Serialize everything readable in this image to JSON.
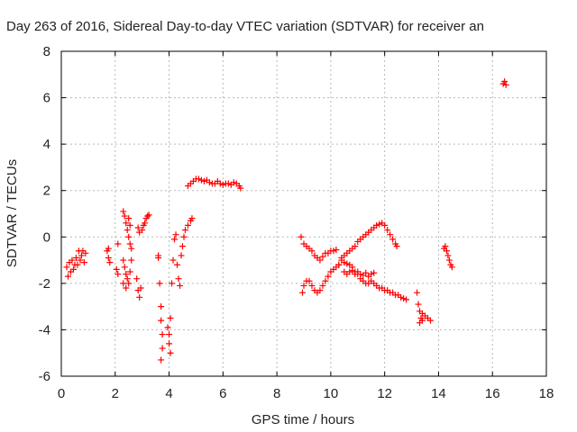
{
  "chart_data": {
    "type": "scatter",
    "title": "Day 263 of 2016, Sidereal Day-to-day VTEC variation (SDTVAR) for receiver an",
    "xlabel": "GPS time / hours",
    "ylabel": "SDTVAR / TECUs",
    "xlim": [
      0,
      18
    ],
    "ylim": [
      -6,
      8
    ],
    "xticks": [
      0,
      2,
      4,
      6,
      8,
      10,
      12,
      14,
      16,
      18
    ],
    "yticks": [
      -6,
      -4,
      -2,
      0,
      2,
      4,
      6,
      8
    ],
    "grid": true,
    "marker": "plus",
    "color": "#ff0000",
    "segments": [
      [
        [
          0.2,
          -1.3
        ],
        [
          0.25,
          -1.7
        ],
        [
          0.3,
          -1.1
        ],
        [
          0.35,
          -1.5
        ],
        [
          0.4,
          -1.0
        ],
        [
          0.45,
          -1.4
        ],
        [
          0.5,
          -1.2
        ],
        [
          0.55,
          -0.9
        ],
        [
          0.6,
          -1.2
        ],
        [
          0.65,
          -0.6
        ],
        [
          0.7,
          -1.0
        ],
        [
          0.75,
          -0.8
        ],
        [
          0.8,
          -0.6
        ],
        [
          0.85,
          -1.1
        ],
        [
          0.9,
          -0.7
        ]
      ],
      [
        [
          1.7,
          -0.6
        ],
        [
          1.75,
          -0.9
        ],
        [
          1.8,
          -1.1
        ],
        [
          1.75,
          -0.5
        ]
      ],
      [
        [
          2.05,
          -1.4
        ],
        [
          2.1,
          -1.6
        ],
        [
          2.1,
          -0.3
        ]
      ],
      [
        [
          2.3,
          1.1
        ],
        [
          2.35,
          0.9
        ],
        [
          2.4,
          0.6
        ],
        [
          2.45,
          0.3
        ],
        [
          2.5,
          0.0
        ],
        [
          2.55,
          -0.3
        ],
        [
          2.5,
          0.8
        ],
        [
          2.55,
          0.5
        ]
      ],
      [
        [
          2.3,
          -1.0
        ],
        [
          2.35,
          -1.3
        ],
        [
          2.4,
          -1.6
        ],
        [
          2.45,
          -1.8
        ],
        [
          2.5,
          -2.0
        ],
        [
          2.55,
          -1.5
        ],
        [
          2.6,
          -1.0
        ],
        [
          2.6,
          -0.5
        ],
        [
          2.4,
          -2.2
        ],
        [
          2.3,
          -2.0
        ]
      ],
      [
        [
          2.8,
          -1.8
        ],
        [
          2.85,
          -2.3
        ],
        [
          2.9,
          -2.6
        ],
        [
          2.95,
          -2.2
        ]
      ],
      [
        [
          2.85,
          0.4
        ],
        [
          2.9,
          0.2
        ],
        [
          3.0,
          0.3
        ],
        [
          3.05,
          0.5
        ],
        [
          3.1,
          0.6
        ],
        [
          3.15,
          0.8
        ],
        [
          3.2,
          0.9
        ],
        [
          3.25,
          0.95
        ]
      ],
      [
        [
          3.6,
          -0.8
        ],
        [
          3.65,
          -2.0
        ],
        [
          3.7,
          -3.0
        ],
        [
          3.7,
          -3.6
        ],
        [
          3.75,
          -4.2
        ],
        [
          3.75,
          -4.8
        ],
        [
          3.7,
          -5.3
        ],
        [
          3.6,
          -0.9
        ]
      ],
      [
        [
          3.95,
          -3.9
        ],
        [
          4.0,
          -4.2
        ],
        [
          4.0,
          -4.6
        ],
        [
          4.05,
          -5.0
        ],
        [
          4.05,
          -3.5
        ],
        [
          4.1,
          -2.0
        ],
        [
          4.15,
          -1.0
        ],
        [
          4.2,
          -0.1
        ],
        [
          4.25,
          0.1
        ]
      ],
      [
        [
          4.3,
          -1.2
        ],
        [
          4.35,
          -1.8
        ],
        [
          4.4,
          -2.1
        ],
        [
          4.45,
          -0.8
        ],
        [
          4.5,
          -0.4
        ],
        [
          4.55,
          0.0
        ],
        [
          4.6,
          0.3
        ],
        [
          4.7,
          0.5
        ],
        [
          4.8,
          0.7
        ],
        [
          4.85,
          0.8
        ]
      ],
      [
        [
          4.7,
          2.2
        ],
        [
          4.8,
          2.3
        ],
        [
          4.9,
          2.4
        ],
        [
          5.0,
          2.5
        ],
        [
          5.1,
          2.5
        ],
        [
          5.2,
          2.45
        ],
        [
          5.3,
          2.4
        ],
        [
          5.4,
          2.45
        ],
        [
          5.5,
          2.35
        ],
        [
          5.6,
          2.3
        ],
        [
          5.7,
          2.3
        ],
        [
          5.8,
          2.4
        ],
        [
          5.9,
          2.3
        ],
        [
          6.0,
          2.25
        ],
        [
          6.1,
          2.3
        ],
        [
          6.2,
          2.3
        ],
        [
          6.3,
          2.25
        ],
        [
          6.4,
          2.35
        ],
        [
          6.5,
          2.3
        ],
        [
          6.6,
          2.2
        ],
        [
          6.65,
          2.1
        ]
      ],
      [
        [
          8.9,
          0.0
        ],
        [
          9.0,
          -0.3
        ],
        [
          9.1,
          -0.4
        ],
        [
          9.2,
          -0.5
        ],
        [
          9.3,
          -0.6
        ],
        [
          9.4,
          -0.8
        ],
        [
          9.5,
          -0.9
        ],
        [
          9.6,
          -1.0
        ],
        [
          9.7,
          -0.85
        ],
        [
          9.8,
          -0.7
        ],
        [
          9.9,
          -0.7
        ],
        [
          10.0,
          -0.6
        ],
        [
          10.1,
          -0.6
        ],
        [
          10.2,
          -0.55
        ]
      ],
      [
        [
          8.95,
          -2.4
        ],
        [
          9.0,
          -2.1
        ],
        [
          9.1,
          -1.9
        ],
        [
          9.2,
          -1.9
        ],
        [
          9.3,
          -2.1
        ],
        [
          9.4,
          -2.3
        ],
        [
          9.5,
          -2.4
        ],
        [
          9.6,
          -2.3
        ],
        [
          9.7,
          -2.1
        ],
        [
          9.8,
          -1.9
        ],
        [
          9.9,
          -1.7
        ],
        [
          10.0,
          -1.5
        ],
        [
          10.1,
          -1.4
        ],
        [
          10.2,
          -1.3
        ],
        [
          10.3,
          -1.2
        ]
      ],
      [
        [
          10.3,
          -1.2
        ],
        [
          10.4,
          -1.0
        ],
        [
          10.5,
          -1.1
        ],
        [
          10.6,
          -1.15
        ],
        [
          10.7,
          -1.2
        ],
        [
          10.8,
          -1.3
        ],
        [
          10.9,
          -1.5
        ],
        [
          11.0,
          -1.6
        ],
        [
          11.1,
          -1.8
        ],
        [
          11.2,
          -1.9
        ],
        [
          11.3,
          -2.0
        ],
        [
          11.4,
          -2.0
        ],
        [
          11.5,
          -1.9
        ],
        [
          11.6,
          -2.0
        ],
        [
          11.7,
          -2.1
        ],
        [
          11.8,
          -2.2
        ],
        [
          11.9,
          -2.2
        ],
        [
          12.0,
          -2.3
        ],
        [
          12.1,
          -2.3
        ],
        [
          12.2,
          -2.4
        ],
        [
          12.3,
          -2.4
        ],
        [
          12.4,
          -2.5
        ],
        [
          12.5,
          -2.5
        ],
        [
          12.6,
          -2.6
        ],
        [
          12.7,
          -2.65
        ],
        [
          12.8,
          -2.7
        ]
      ],
      [
        [
          10.5,
          -1.5
        ],
        [
          10.6,
          -1.6
        ],
        [
          10.7,
          -1.5
        ],
        [
          10.8,
          -1.45
        ],
        [
          10.9,
          -1.6
        ],
        [
          11.0,
          -1.5
        ],
        [
          11.1,
          -1.6
        ],
        [
          11.2,
          -1.65
        ],
        [
          11.3,
          -1.55
        ],
        [
          11.4,
          -1.7
        ],
        [
          11.5,
          -1.6
        ],
        [
          11.6,
          -1.55
        ]
      ],
      [
        [
          10.4,
          -0.9
        ],
        [
          10.5,
          -0.8
        ],
        [
          10.6,
          -0.7
        ],
        [
          10.7,
          -0.6
        ],
        [
          10.8,
          -0.5
        ],
        [
          10.9,
          -0.4
        ],
        [
          11.0,
          -0.2
        ],
        [
          11.1,
          -0.1
        ],
        [
          11.2,
          0.0
        ],
        [
          11.3,
          0.1
        ],
        [
          11.4,
          0.2
        ],
        [
          11.5,
          0.3
        ],
        [
          11.6,
          0.4
        ],
        [
          11.7,
          0.5
        ],
        [
          11.8,
          0.55
        ],
        [
          11.9,
          0.6
        ],
        [
          12.0,
          0.5
        ],
        [
          12.1,
          0.3
        ],
        [
          12.2,
          0.1
        ],
        [
          12.3,
          -0.1
        ],
        [
          12.4,
          -0.3
        ],
        [
          12.45,
          -0.4
        ]
      ],
      [
        [
          13.2,
          -2.4
        ],
        [
          13.25,
          -2.9
        ],
        [
          13.3,
          -3.2
        ],
        [
          13.35,
          -3.5
        ],
        [
          13.4,
          -3.6
        ],
        [
          13.5,
          -3.4
        ],
        [
          13.6,
          -3.5
        ],
        [
          13.7,
          -3.6
        ],
        [
          13.3,
          -3.7
        ],
        [
          13.4,
          -3.3
        ]
      ],
      [
        [
          14.2,
          -0.5
        ],
        [
          14.25,
          -0.4
        ],
        [
          14.3,
          -0.6
        ],
        [
          14.35,
          -0.8
        ],
        [
          14.4,
          -1.0
        ],
        [
          14.45,
          -1.2
        ],
        [
          14.5,
          -1.3
        ]
      ],
      [
        [
          16.4,
          6.6
        ],
        [
          16.45,
          6.7
        ],
        [
          16.5,
          6.55
        ]
      ]
    ]
  }
}
